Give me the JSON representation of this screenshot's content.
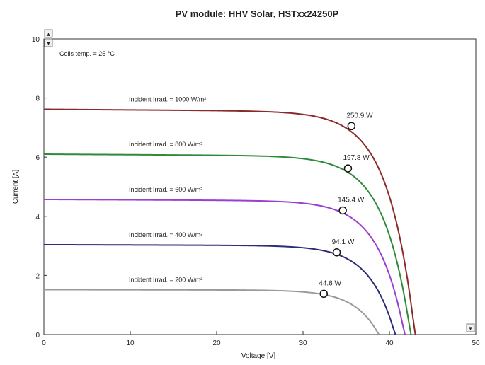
{
  "chart_data": {
    "type": "line",
    "title": "PV module:  HHV Solar,  HSTxx24250P",
    "xlabel": "Voltage [V]",
    "ylabel": "Current [A]",
    "xlim": [
      0,
      50
    ],
    "ylim": [
      0,
      10
    ],
    "xticks": [
      "0",
      "10",
      "20",
      "30",
      "40",
      "50"
    ],
    "yticks": [
      "0",
      "2",
      "4",
      "6",
      "8",
      "10"
    ],
    "grid": false,
    "annotation": "Cells temp.  = 25 °C",
    "series": [
      {
        "name": "Incident Irrad. = 1000 W/m²",
        "color": "#8b2a2a",
        "isc": 7.62,
        "voc": 43.0,
        "mpp_v": 35.6,
        "mpp_i": 7.05,
        "power_label": "250.9 W"
      },
      {
        "name": "Incident Irrad. = 800 W/m²",
        "color": "#2e8b3a",
        "isc": 6.1,
        "voc": 42.5,
        "mpp_v": 35.2,
        "mpp_i": 5.62,
        "power_label": "197.8 W"
      },
      {
        "name": "Incident Irrad. = 600 W/m²",
        "color": "#9a3fd0",
        "isc": 4.57,
        "voc": 41.8,
        "mpp_v": 34.6,
        "mpp_i": 4.2,
        "power_label": "145.4 W"
      },
      {
        "name": "Incident Irrad. = 400 W/m²",
        "color": "#2c2c7a",
        "isc": 3.04,
        "voc": 40.7,
        "mpp_v": 33.9,
        "mpp_i": 2.78,
        "power_label": "94.1 W"
      },
      {
        "name": "Incident Irrad. = 200 W/m²",
        "color": "#9a9a9a",
        "isc": 1.52,
        "voc": 38.8,
        "mpp_v": 32.4,
        "mpp_i": 1.38,
        "power_label": "44.6 W"
      }
    ]
  },
  "scroll_controls": {
    "up_symbol": "▴",
    "down_symbol": "▾"
  }
}
